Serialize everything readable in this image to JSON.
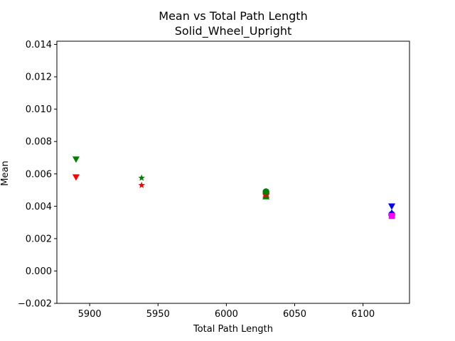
{
  "chart_data": {
    "type": "scatter",
    "title": "Mean vs Total Path Length",
    "subtitle": "Solid_Wheel_Upright",
    "xlabel": "Total Path Length",
    "ylabel": "Mean",
    "xlim": [
      5876,
      6134
    ],
    "ylim": [
      -0.002,
      0.0142
    ],
    "grid": false,
    "legend": "none",
    "xticks": [
      5900,
      5950,
      6000,
      6050,
      6100
    ],
    "yticks": [
      -0.002,
      0.0,
      0.002,
      0.004,
      0.006,
      0.008,
      0.01,
      0.012,
      0.014
    ],
    "xtick_labels": [
      "5900",
      "5950",
      "6000",
      "6050",
      "6100"
    ],
    "ytick_labels": [
      "−0.002",
      "0.000",
      "0.002",
      "0.004",
      "0.006",
      "0.008",
      "0.010",
      "0.012",
      "0.014"
    ],
    "points": [
      {
        "x": 5890,
        "y": 0.0069,
        "marker": "triangle-down",
        "color": "#008000"
      },
      {
        "x": 5890,
        "y": 0.0058,
        "marker": "triangle-down",
        "color": "#ff0000"
      },
      {
        "x": 5938,
        "y": 0.00575,
        "marker": "star",
        "color": "#008000"
      },
      {
        "x": 5938,
        "y": 0.0053,
        "marker": "star",
        "color": "#ff0000"
      },
      {
        "x": 6029,
        "y": 0.0047,
        "marker": "triangle-up",
        "color": "#ff0000"
      },
      {
        "x": 6029,
        "y": 0.0046,
        "marker": "triangle-up",
        "color": "#008000"
      },
      {
        "x": 6029,
        "y": 0.0048,
        "marker": "circle",
        "color": "#ff0000"
      },
      {
        "x": 6029,
        "y": 0.0049,
        "marker": "circle",
        "color": "#008000"
      },
      {
        "x": 6121,
        "y": 0.004,
        "marker": "triangle-down",
        "color": "#0000ff"
      },
      {
        "x": 6121,
        "y": 0.0036,
        "marker": "triangle-up",
        "color": "#0000ff"
      },
      {
        "x": 6121,
        "y": 0.0035,
        "marker": "circle",
        "color": "#0000ff"
      },
      {
        "x": 6121,
        "y": 0.0034,
        "marker": "square",
        "color": "#ff00ff"
      }
    ]
  }
}
